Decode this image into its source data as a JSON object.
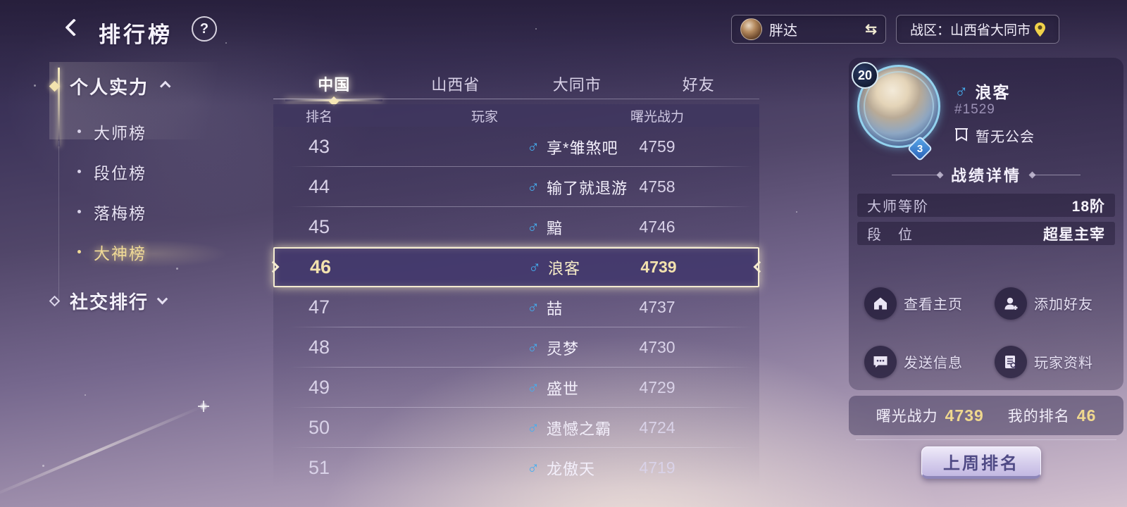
{
  "colors": {
    "accent_gold": "#f0d88e",
    "highlight_border": "#f5ecd0",
    "male_blue": "#45aef0",
    "pin_yellow": "#f0d24a",
    "button_text": "#4f4a85"
  },
  "icons": {
    "male": "♂",
    "swap": "⇆",
    "help": "?"
  },
  "header": {
    "title": "排行榜",
    "player": {
      "name": "胖达"
    },
    "warzone": {
      "label": "战区：山西省大同市"
    }
  },
  "sidebar": {
    "groups": [
      {
        "label": "个人实力",
        "state": "expanded"
      },
      {
        "label": "社交排行",
        "state": "collapsed"
      }
    ],
    "items": [
      {
        "label": "大师榜",
        "active": false
      },
      {
        "label": "段位榜",
        "active": false
      },
      {
        "label": "落梅榜",
        "active": false
      },
      {
        "label": "大神榜",
        "active": true
      }
    ]
  },
  "tabs": [
    {
      "label": "中国",
      "active": true
    },
    {
      "label": "山西省",
      "active": false
    },
    {
      "label": "大同市",
      "active": false
    },
    {
      "label": "好友",
      "active": false
    }
  ],
  "table": {
    "columns": [
      "排名",
      "玩家",
      "曙光战力"
    ],
    "rows": [
      {
        "rank": "43",
        "name": "享*雏煞吧",
        "power": "4759",
        "gender": "male",
        "highlight": false
      },
      {
        "rank": "44",
        "name": "输了就退游",
        "power": "4758",
        "gender": "male",
        "highlight": false
      },
      {
        "rank": "45",
        "name": "黯",
        "power": "4746",
        "gender": "male",
        "highlight": false
      },
      {
        "rank": "46",
        "name": "浪客",
        "power": "4739",
        "gender": "male",
        "highlight": true
      },
      {
        "rank": "47",
        "name": "喆",
        "power": "4737",
        "gender": "male",
        "highlight": false
      },
      {
        "rank": "48",
        "name": "灵梦",
        "power": "4730",
        "gender": "male",
        "highlight": false
      },
      {
        "rank": "49",
        "name": "盛世",
        "power": "4729",
        "gender": "male",
        "highlight": false
      },
      {
        "rank": "50",
        "name": "遗憾之霸",
        "power": "4724",
        "gender": "male",
        "highlight": false
      },
      {
        "rank": "51",
        "name": "龙傲天",
        "power": "4719",
        "gender": "male",
        "highlight": false
      }
    ]
  },
  "profile": {
    "level": "20",
    "sub_badge": "3",
    "name": "浪客",
    "id": "#1529",
    "guild": "暂无公会",
    "section_title": "战绩详情",
    "stats": [
      {
        "label": "大师等阶",
        "value": "18阶"
      },
      {
        "label": "段　位",
        "value": "超星主宰"
      }
    ],
    "actions": [
      {
        "label": "查看主页",
        "icon": "home-icon"
      },
      {
        "label": "添加好友",
        "icon": "add-friend-icon"
      },
      {
        "label": "发送信息",
        "icon": "message-icon"
      },
      {
        "label": "玩家资料",
        "icon": "profile-doc-icon"
      }
    ],
    "summary": {
      "power_label": "曙光战力",
      "power_value": "4739",
      "rank_label": "我的排名",
      "rank_value": "46"
    },
    "last_week_button": "上周排名"
  }
}
